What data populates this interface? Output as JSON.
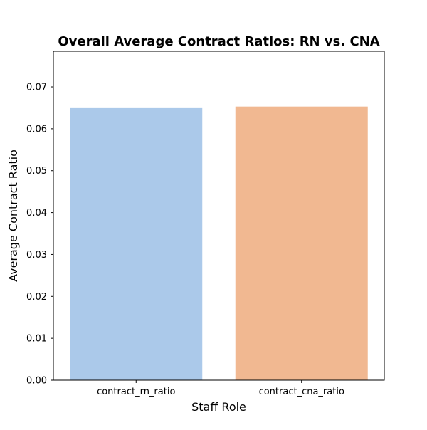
{
  "chart_data": {
    "type": "bar",
    "title": "Overall Average Contract Ratios: RN vs. CNA",
    "xlabel": "Staff Role",
    "ylabel": "Average Contract Ratio",
    "categories": [
      "contract_rn_ratio",
      "contract_cna_ratio"
    ],
    "values": [
      0.0651,
      0.0653
    ],
    "bar_colors": [
      "#abc9ea",
      "#f1b891"
    ],
    "ylim": [
      0,
      0.0785
    ],
    "yticks": [
      0.0,
      0.01,
      0.02,
      0.03,
      0.04,
      0.05,
      0.06,
      0.07
    ],
    "ytick_labels": [
      "0.00",
      "0.01",
      "0.02",
      "0.03",
      "0.04",
      "0.05",
      "0.06",
      "0.07"
    ],
    "grid": false,
    "legend": "none"
  }
}
